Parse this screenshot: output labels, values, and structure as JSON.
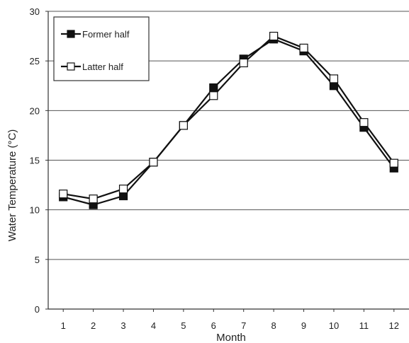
{
  "chart_data": {
    "type": "line",
    "title": "",
    "xlabel": "Month",
    "ylabel": "Water Temperature (°C)",
    "x": [
      1,
      2,
      3,
      4,
      5,
      6,
      7,
      8,
      9,
      10,
      11,
      12
    ],
    "xlim": [
      0.5,
      12.5
    ],
    "ylim": [
      0,
      30
    ],
    "yticks": [
      0,
      5,
      10,
      15,
      20,
      25,
      30
    ],
    "grid": true,
    "legend_position": "top-left",
    "series": [
      {
        "name": "Former half",
        "marker": "filled-square",
        "color": "#111111",
        "values": [
          11.3,
          10.5,
          11.4,
          14.8,
          18.5,
          22.3,
          25.2,
          27.2,
          26.0,
          22.5,
          18.3,
          14.2
        ]
      },
      {
        "name": "Latter half",
        "marker": "open-square",
        "color": "#111111",
        "values": [
          11.6,
          11.1,
          12.1,
          14.8,
          18.5,
          21.5,
          24.8,
          27.5,
          26.3,
          23.2,
          18.8,
          14.7
        ]
      }
    ]
  }
}
